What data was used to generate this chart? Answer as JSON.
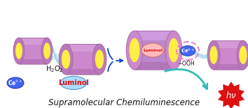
{
  "title": "Supramolecular Chemiluminescence",
  "title_fontsize": 8.5,
  "bg_color": "#ffffff",
  "cyl_body": "#cc88cc",
  "cyl_rim": "#bb77bb",
  "cyl_end": "#ffee44",
  "cyl_shadow": "#aa66aa",
  "cyl_hi": "#ddaadd",
  "blue_arr": "#1144cc",
  "cyan_arr": "#33bbbb",
  "lbblue": "#aadeee",
  "star_red": "#dd1111",
  "hv_white": "#ffffff",
  "ce_blue": "#4466ee",
  "ce_white": "#ffffff",
  "lum_blue": "#aaddff",
  "lum_red": "#dd1111",
  "pink_ring": "#ee88cc",
  "lum_pink": "#ffaaaa",
  "black": "#111111",
  "fig_w": 3.54,
  "fig_h": 1.55,
  "dpi": 100
}
